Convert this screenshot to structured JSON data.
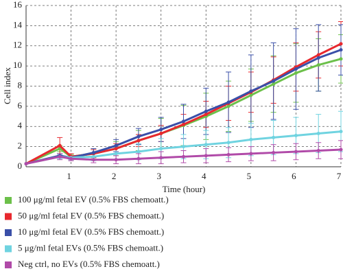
{
  "chart_data": {
    "type": "line",
    "xlabel": "Time (hour)",
    "ylabel": "Cell index",
    "x": [
      0,
      0.75,
      1,
      1.5,
      2,
      2.5,
      3,
      3.5,
      4,
      4.5,
      5,
      5.5,
      6,
      6.5,
      7
    ],
    "xlim": [
      0,
      7
    ],
    "xticks": [
      1,
      2,
      3,
      4,
      5,
      6,
      7
    ],
    "ylim": [
      0,
      16
    ],
    "yticks": [
      0,
      2,
      4,
      6,
      8,
      10,
      12,
      14,
      16
    ],
    "grid": true,
    "legend": "bottom",
    "series": [
      {
        "name": "100 μg/ml fetal EV (0.5% FBS chemoatt.)",
        "color": "#6cc04a",
        "values": [
          0.3,
          1.8,
          1.0,
          1.3,
          1.8,
          2.6,
          3.3,
          4.1,
          5.0,
          6.0,
          7.1,
          8.2,
          9.3,
          10.1,
          10.7
        ],
        "errors": [
          0,
          0.3,
          0.2,
          0.4,
          0.7,
          1.0,
          1.5,
          2.0,
          2.3,
          2.5,
          2.6,
          2.8,
          2.9,
          2.6,
          2.4
        ]
      },
      {
        "name": "50 μg/ml fetal EV (0.5% FBS chemoatt.)",
        "color": "#e8282e",
        "values": [
          0.3,
          2.1,
          1.0,
          1.3,
          1.8,
          2.6,
          3.3,
          4.2,
          5.2,
          6.3,
          7.4,
          8.6,
          9.9,
          11.1,
          12.2
        ],
        "errors": [
          0,
          0.8,
          0.3,
          0.4,
          0.5,
          0.6,
          0.8,
          1.0,
          1.3,
          1.7,
          2.0,
          2.3,
          2.4,
          2.3,
          2.2
        ]
      },
      {
        "name": "10 μg/ml fetal EV (0.5% FBS chemoatt.)",
        "color": "#3a4fa8",
        "values": [
          0.3,
          1.1,
          0.9,
          1.4,
          2.1,
          3.0,
          3.7,
          4.5,
          5.5,
          6.4,
          7.5,
          8.5,
          9.7,
          10.8,
          11.6
        ],
        "errors": [
          0,
          0.2,
          0.2,
          0.4,
          0.6,
          0.8,
          1.2,
          1.7,
          2.3,
          3.0,
          3.6,
          3.8,
          4.0,
          3.3,
          2.5
        ]
      },
      {
        "name": "5 μg/ml fetal EVs (0.5% FBS chemoatt.)",
        "color": "#6fd3e0",
        "values": [
          0.3,
          1.0,
          0.9,
          1.0,
          1.3,
          1.5,
          1.8,
          2.0,
          2.2,
          2.4,
          2.7,
          2.9,
          3.1,
          3.3,
          3.5
        ],
        "errors": [
          0,
          0.2,
          0.2,
          0.4,
          0.6,
          0.8,
          1.0,
          1.2,
          1.4,
          1.5,
          1.6,
          1.7,
          1.8,
          1.9,
          2.0
        ]
      },
      {
        "name": "Neg ctrl, no EVs (0.5% FBS chemoatt.)",
        "color": "#b04aa8",
        "values": [
          0.3,
          1.0,
          0.8,
          0.7,
          0.7,
          0.8,
          0.9,
          1.0,
          1.1,
          1.2,
          1.3,
          1.4,
          1.5,
          1.6,
          1.7
        ],
        "errors": [
          0,
          0.3,
          0.2,
          0.3,
          0.4,
          0.5,
          0.6,
          0.6,
          0.7,
          0.7,
          0.7,
          0.8,
          0.8,
          0.8,
          0.9
        ]
      }
    ]
  }
}
